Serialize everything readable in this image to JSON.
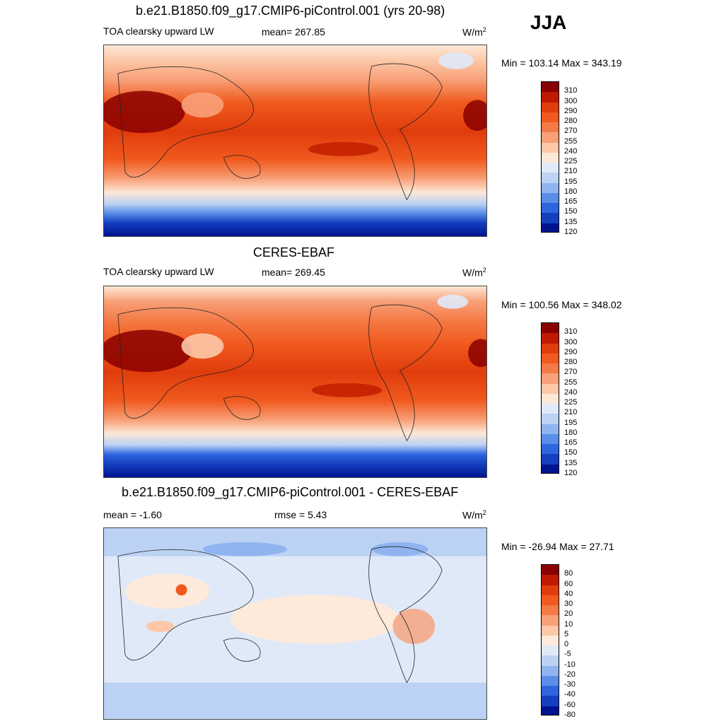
{
  "season": "JJA",
  "panels": [
    {
      "title": "b.e21.B1850.f09_g17.CMIP6-piControl.001 (yrs 20-98)",
      "left_label": "TOA clearsky upward LW",
      "center_label": "mean= 267.85",
      "units_base": "W/m",
      "units_exp": "2",
      "minmax": "Min = 103.14 Max = 343.19",
      "levels": [
        "310",
        "300",
        "290",
        "280",
        "270",
        "255",
        "240",
        "225",
        "210",
        "195",
        "180",
        "165",
        "150",
        "135",
        "120"
      ],
      "colors": [
        "#8a0000",
        "#bf1a00",
        "#e03c0c",
        "#f05a1e",
        "#f47a45",
        "#f8a078",
        "#fcc8a8",
        "#fde8d6",
        "#dfe9f8",
        "#bcd2f4",
        "#8fb4f0",
        "#5a8ee8",
        "#2f66e0",
        "#1440c0",
        "#001490"
      ]
    },
    {
      "title": "CERES-EBAF",
      "left_label": "TOA clearsky upward LW",
      "center_label": "mean= 269.45",
      "units_base": "W/m",
      "units_exp": "2",
      "minmax": "Min = 100.56 Max = 348.02",
      "levels": [
        "310",
        "300",
        "290",
        "280",
        "270",
        "255",
        "240",
        "225",
        "210",
        "195",
        "180",
        "165",
        "150",
        "135",
        "120"
      ],
      "colors": [
        "#8a0000",
        "#bf1a00",
        "#e03c0c",
        "#f05a1e",
        "#f47a45",
        "#f8a078",
        "#fcc8a8",
        "#fde8d6",
        "#dfe9f8",
        "#bcd2f4",
        "#8fb4f0",
        "#5a8ee8",
        "#2f66e0",
        "#1440c0",
        "#001490"
      ]
    },
    {
      "title": "b.e21.B1850.f09_g17.CMIP6-piControl.001 - CERES-EBAF",
      "left_label": "mean =  -1.60",
      "center_label": "rmse =   5.43",
      "units_base": "W/m",
      "units_exp": "2",
      "minmax": "Min = -26.94 Max =  27.71",
      "levels": [
        "80",
        "60",
        "40",
        "30",
        "20",
        "10",
        "5",
        "0",
        "-5",
        "-10",
        "-20",
        "-30",
        "-40",
        "-60",
        "-80"
      ],
      "colors": [
        "#8a0000",
        "#bf1a00",
        "#e03c0c",
        "#f05a1e",
        "#f47a45",
        "#f8a078",
        "#fcc8a8",
        "#fdeadb",
        "#dfe9f8",
        "#bcd2f4",
        "#8fb4f0",
        "#5a8ee8",
        "#2f66e0",
        "#1440c0",
        "#001490"
      ]
    }
  ]
}
